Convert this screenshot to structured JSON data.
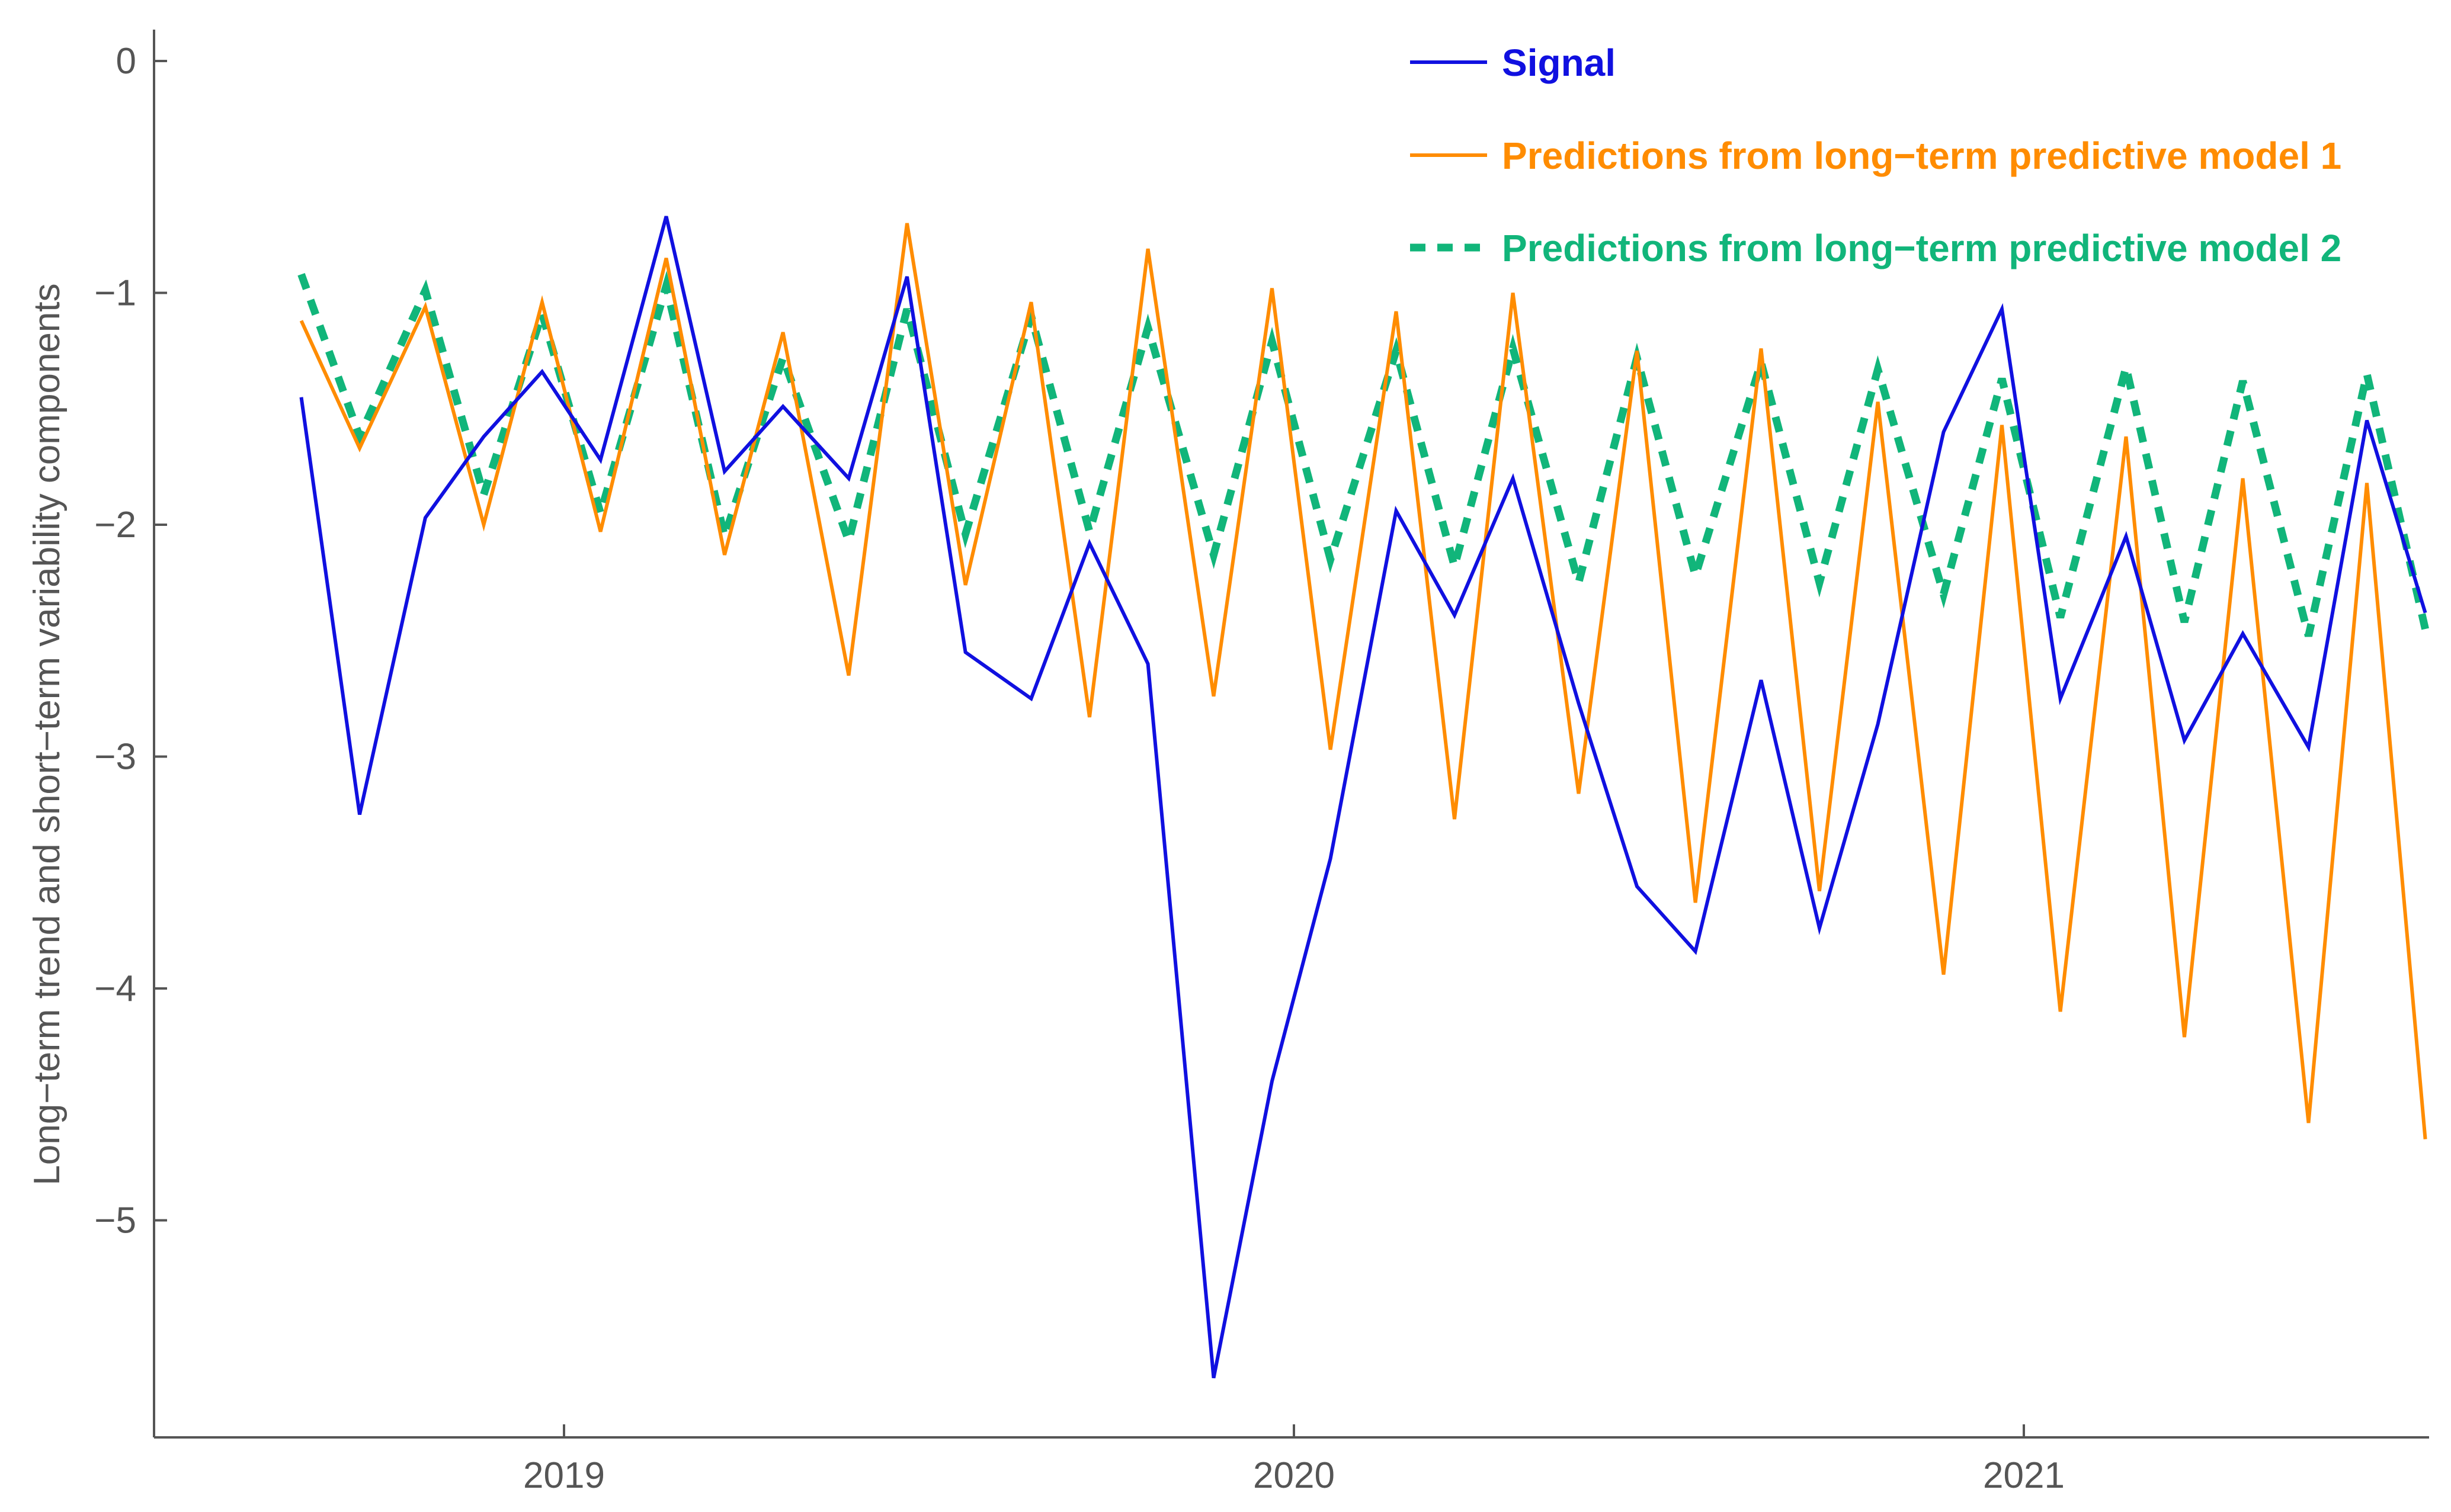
{
  "chart_data": {
    "type": "line",
    "title": "",
    "xlabel": "",
    "ylabel": "Long−term trend and short−term variability components",
    "xlim": [
      2018.5,
      2021.5
    ],
    "ylim": [
      -5.9,
      0.12
    ],
    "x_ticks": [
      {
        "value": 2019,
        "label": "2019"
      },
      {
        "value": 2020,
        "label": "2020"
      },
      {
        "value": 2021,
        "label": "2021"
      }
    ],
    "y_ticks": [
      {
        "value": 0,
        "label": "0"
      },
      {
        "value": -1,
        "label": "−1"
      },
      {
        "value": -2,
        "label": "−2"
      },
      {
        "value": -3,
        "label": "−3"
      },
      {
        "value": -4,
        "label": "−4"
      },
      {
        "value": -5,
        "label": "−5"
      }
    ],
    "grid": false,
    "legend_position": "top-right",
    "x": [
      2018.64,
      2018.72,
      2018.81,
      2018.89,
      2018.97,
      2019.05,
      2019.14,
      2019.22,
      2019.3,
      2019.39,
      2019.47,
      2019.55,
      2019.64,
      2019.72,
      2019.8,
      2019.89,
      2019.97,
      2020.05,
      2020.14,
      2020.22,
      2020.3,
      2020.39,
      2020.47,
      2020.55,
      2020.64,
      2020.72,
      2020.8,
      2020.89,
      2020.97,
      2021.05,
      2021.14,
      2021.22,
      2021.3,
      2021.39,
      2021.47,
      2021.55
    ],
    "series": [
      {
        "name": "Signal",
        "color": "#1010e0",
        "style": "solid",
        "values": [
          -1.45,
          -3.25,
          -1.97,
          -1.62,
          -1.34,
          -1.72,
          -0.67,
          -1.77,
          -1.49,
          -1.8,
          -0.93,
          -2.55,
          -2.75,
          -2.08,
          -2.6,
          -5.68,
          -4.4,
          -3.44,
          -1.94,
          -2.39,
          -1.8,
          -2.77,
          -3.56,
          -3.84,
          -2.67,
          -3.74,
          -2.86,
          -1.6,
          -1.07,
          -2.75,
          -2.05,
          -2.93,
          -2.47,
          -2.96,
          -1.55,
          -2.38
        ]
      },
      {
        "name": "Predictions from long−term predictive model 1",
        "color": "#ff8c00",
        "style": "solid",
        "values": [
          -1.12,
          -1.67,
          -1.06,
          -2.0,
          -1.04,
          -2.03,
          -0.85,
          -2.13,
          -1.17,
          -2.65,
          -0.7,
          -2.26,
          -1.04,
          -2.83,
          -0.81,
          -2.74,
          -0.98,
          -2.97,
          -1.08,
          -3.27,
          -1.0,
          -3.16,
          -1.25,
          -3.63,
          -1.24,
          -3.58,
          -1.47,
          -3.94,
          -1.57,
          -4.1,
          -1.62,
          -4.21,
          -1.8,
          -4.58,
          -1.82,
          -4.65
        ]
      },
      {
        "name": "Predictions from long−term predictive model 2",
        "color": "#11b57a",
        "style": "dashed",
        "values": [
          -0.92,
          -1.62,
          -0.99,
          -1.87,
          -1.09,
          -1.95,
          -0.97,
          -2.05,
          -1.28,
          -2.07,
          -1.07,
          -2.04,
          -1.1,
          -2.03,
          -1.15,
          -2.13,
          -1.21,
          -2.15,
          -1.25,
          -2.18,
          -1.24,
          -2.25,
          -1.28,
          -2.22,
          -1.3,
          -2.25,
          -1.33,
          -2.3,
          -1.37,
          -2.4,
          -1.32,
          -2.42,
          -1.38,
          -2.48,
          -1.35,
          -2.45
        ]
      }
    ]
  }
}
